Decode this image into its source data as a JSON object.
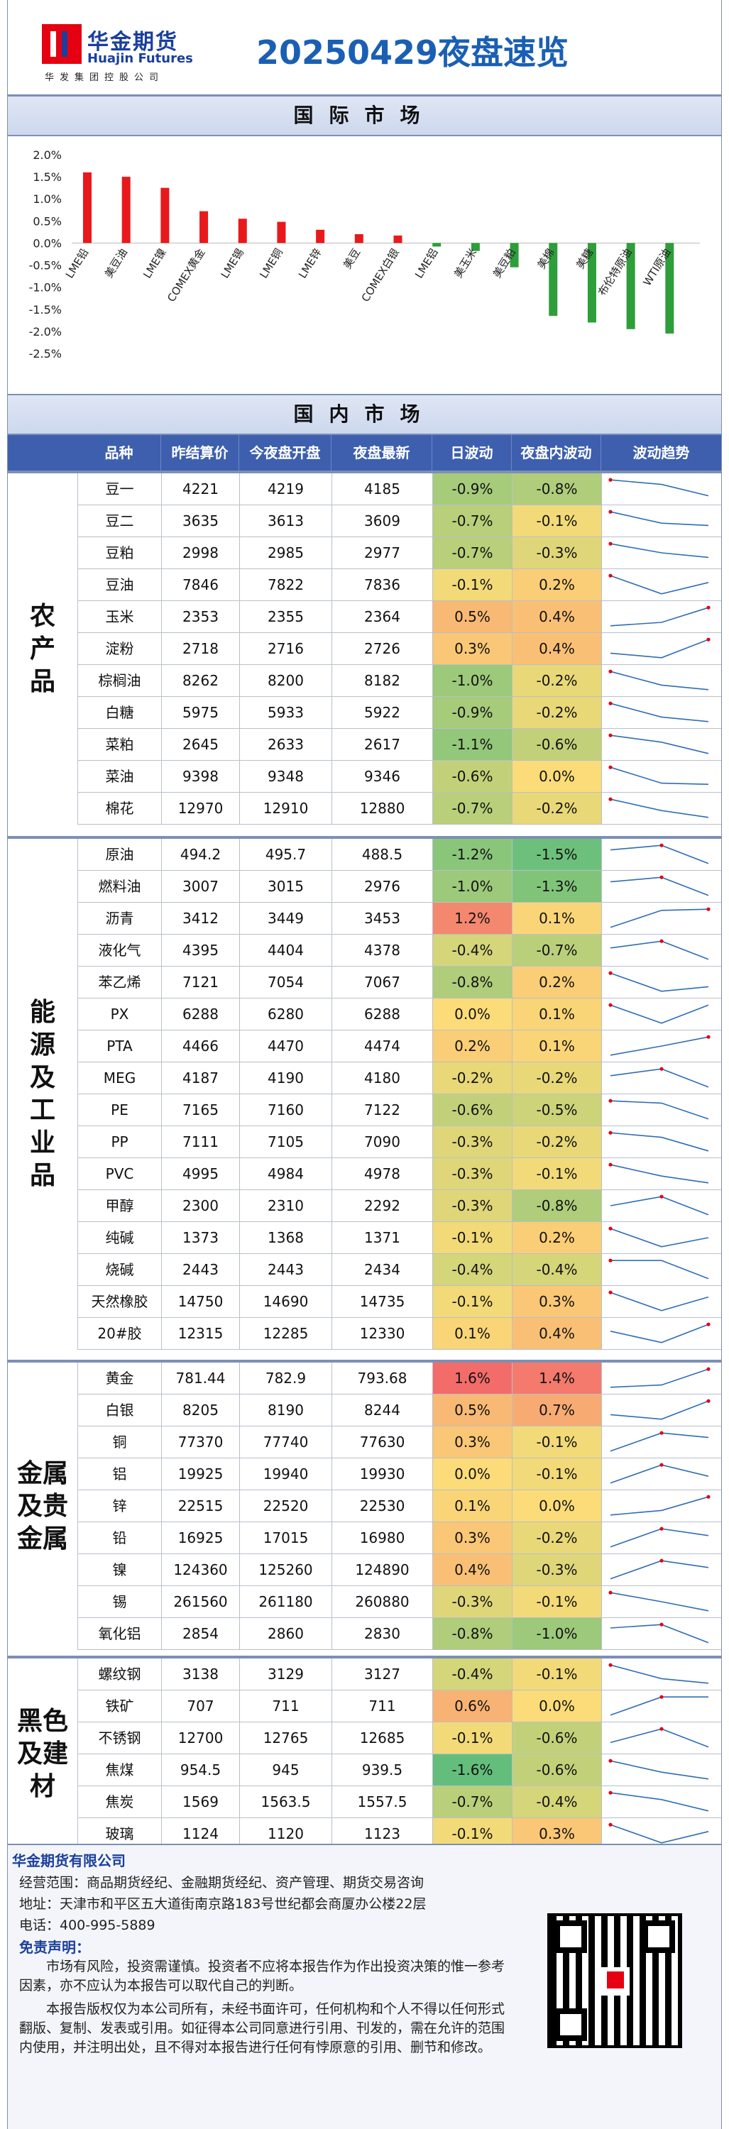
{
  "header": {
    "logo_cn": "华金期货",
    "logo_en": "Huajin Futures",
    "logo_sub": "华发集团控股公司",
    "title": "20250429夜盘速览"
  },
  "sections": {
    "international": "国际市场",
    "domestic": "国内市场"
  },
  "chart_data": {
    "type": "bar",
    "categories": [
      "LME铅",
      "美豆油",
      "LME镍",
      "COMEX黄金",
      "LME锡",
      "LME铜",
      "LME锌",
      "美豆",
      "COMEX白银",
      "LME铝",
      "美玉米",
      "美豆粕",
      "美棉",
      "美糖",
      "布伦特原油",
      "WTI原油"
    ],
    "values": [
      1.6,
      1.5,
      1.25,
      0.72,
      0.55,
      0.48,
      0.3,
      0.2,
      0.17,
      -0.08,
      -0.18,
      -0.55,
      -1.65,
      -1.8,
      -1.95,
      -2.05
    ],
    "yticks": [
      "2.0%",
      "1.5%",
      "1.0%",
      "0.5%",
      "0.0%",
      "-0.5%",
      "-1.0%",
      "-1.5%",
      "-2.0%",
      "-2.5%"
    ],
    "ylim": [
      -2.5,
      2.0
    ],
    "colors": {
      "positive": "#e8191c",
      "negative": "#2e9e3a"
    },
    "grid": false
  },
  "table": {
    "headers": [
      "品种",
      "昨结算价",
      "今夜盘开盘",
      "夜盘最新",
      "日波动",
      "夜盘内波动",
      "波动趋势"
    ],
    "groups": [
      {
        "label": "农\n产\n品",
        "rows": [
          {
            "name": "豆一",
            "prev": "4221",
            "open": "4219",
            "last": "4185",
            "day": "-0.9%",
            "night": "-0.8%",
            "d": -0.9,
            "n": -0.8,
            "trend": [
              0.9,
              0.7,
              0.2
            ]
          },
          {
            "name": "豆二",
            "prev": "3635",
            "open": "3613",
            "last": "3609",
            "day": "-0.7%",
            "night": "-0.1%",
            "d": -0.7,
            "n": -0.1,
            "trend": [
              0.9,
              0.4,
              0.3
            ]
          },
          {
            "name": "豆粕",
            "prev": "2998",
            "open": "2985",
            "last": "2977",
            "day": "-0.7%",
            "night": "-0.3%",
            "d": -0.7,
            "n": -0.3,
            "trend": [
              0.9,
              0.5,
              0.3
            ]
          },
          {
            "name": "豆油",
            "prev": "7846",
            "open": "7822",
            "last": "7836",
            "day": "-0.1%",
            "night": "0.2%",
            "d": -0.1,
            "n": 0.2,
            "trend": [
              0.9,
              0.1,
              0.6
            ]
          },
          {
            "name": "玉米",
            "prev": "2353",
            "open": "2355",
            "last": "2364",
            "day": "0.5%",
            "night": "0.4%",
            "d": 0.5,
            "n": 0.4,
            "trend": [
              0.1,
              0.25,
              0.9
            ]
          },
          {
            "name": "淀粉",
            "prev": "2718",
            "open": "2716",
            "last": "2726",
            "day": "0.3%",
            "night": "0.4%",
            "d": 0.3,
            "n": 0.4,
            "trend": [
              0.3,
              0.1,
              0.9
            ]
          },
          {
            "name": "棕榈油",
            "prev": "8262",
            "open": "8200",
            "last": "8182",
            "day": "-1.0%",
            "night": "-0.2%",
            "d": -1.0,
            "n": -0.2,
            "trend": [
              0.9,
              0.3,
              0.1
            ]
          },
          {
            "name": "白糖",
            "prev": "5975",
            "open": "5933",
            "last": "5922",
            "day": "-0.9%",
            "night": "-0.2%",
            "d": -0.9,
            "n": -0.2,
            "trend": [
              0.9,
              0.3,
              0.1
            ]
          },
          {
            "name": "菜粕",
            "prev": "2645",
            "open": "2633",
            "last": "2617",
            "day": "-1.1%",
            "night": "-0.6%",
            "d": -1.1,
            "n": -0.6,
            "trend": [
              0.9,
              0.6,
              0.1
            ]
          },
          {
            "name": "菜油",
            "prev": "9398",
            "open": "9348",
            "last": "9346",
            "day": "-0.6%",
            "night": "0.0%",
            "d": -0.6,
            "n": 0.0,
            "trend": [
              0.9,
              0.2,
              0.15
            ]
          },
          {
            "name": "棉花",
            "prev": "12970",
            "open": "12910",
            "last": "12880",
            "day": "-0.7%",
            "night": "-0.2%",
            "d": -0.7,
            "n": -0.2,
            "trend": [
              0.9,
              0.4,
              0.1
            ]
          }
        ]
      },
      {
        "label": "能\n源\n及\n工\n业\n品",
        "rows": [
          {
            "name": "原油",
            "prev": "494.2",
            "open": "495.7",
            "last": "488.5",
            "day": "-1.2%",
            "night": "-1.5%",
            "d": -1.2,
            "n": -1.5,
            "trend": [
              0.7,
              0.9,
              0.1
            ]
          },
          {
            "name": "燃料油",
            "prev": "3007",
            "open": "3015",
            "last": "2976",
            "day": "-1.0%",
            "night": "-1.3%",
            "d": -1.0,
            "n": -1.3,
            "trend": [
              0.7,
              0.9,
              0.1
            ]
          },
          {
            "name": "沥青",
            "prev": "3412",
            "open": "3449",
            "last": "3453",
            "day": "1.2%",
            "night": "0.1%",
            "d": 1.2,
            "n": 0.1,
            "trend": [
              0.1,
              0.85,
              0.9
            ]
          },
          {
            "name": "液化气",
            "prev": "4395",
            "open": "4404",
            "last": "4378",
            "day": "-0.4%",
            "night": "-0.7%",
            "d": -0.4,
            "n": -0.7,
            "trend": [
              0.6,
              0.9,
              0.1
            ]
          },
          {
            "name": "苯乙烯",
            "prev": "7121",
            "open": "7054",
            "last": "7067",
            "day": "-0.8%",
            "night": "0.2%",
            "d": -0.8,
            "n": 0.2,
            "trend": [
              0.9,
              0.1,
              0.3
            ]
          },
          {
            "name": "PX",
            "prev": "6288",
            "open": "6280",
            "last": "6288",
            "day": "0.0%",
            "night": "0.1%",
            "d": 0.0,
            "n": 0.1,
            "trend": [
              0.9,
              0.1,
              0.9
            ]
          },
          {
            "name": "PTA",
            "prev": "4466",
            "open": "4470",
            "last": "4474",
            "day": "0.2%",
            "night": "0.1%",
            "d": 0.2,
            "n": 0.1,
            "trend": [
              0.1,
              0.5,
              0.9
            ]
          },
          {
            "name": "MEG",
            "prev": "4187",
            "open": "4190",
            "last": "4180",
            "day": "-0.2%",
            "night": "-0.2%",
            "d": -0.2,
            "n": -0.2,
            "trend": [
              0.6,
              0.9,
              0.1
            ]
          },
          {
            "name": "PE",
            "prev": "7165",
            "open": "7160",
            "last": "7122",
            "day": "-0.6%",
            "night": "-0.5%",
            "d": -0.6,
            "n": -0.5,
            "trend": [
              0.9,
              0.8,
              0.1
            ]
          },
          {
            "name": "PP",
            "prev": "7111",
            "open": "7105",
            "last": "7090",
            "day": "-0.3%",
            "night": "-0.2%",
            "d": -0.3,
            "n": -0.2,
            "trend": [
              0.9,
              0.7,
              0.1
            ]
          },
          {
            "name": "PVC",
            "prev": "4995",
            "open": "4984",
            "last": "4978",
            "day": "-0.3%",
            "night": "-0.1%",
            "d": -0.3,
            "n": -0.1,
            "trend": [
              0.9,
              0.4,
              0.1
            ]
          },
          {
            "name": "甲醇",
            "prev": "2300",
            "open": "2310",
            "last": "2292",
            "day": "-0.3%",
            "night": "-0.8%",
            "d": -0.3,
            "n": -0.8,
            "trend": [
              0.5,
              0.9,
              0.1
            ]
          },
          {
            "name": "纯碱",
            "prev": "1373",
            "open": "1368",
            "last": "1371",
            "day": "-0.1%",
            "night": "0.2%",
            "d": -0.1,
            "n": 0.2,
            "trend": [
              0.9,
              0.1,
              0.5
            ]
          },
          {
            "name": "烧碱",
            "prev": "2443",
            "open": "2443",
            "last": "2434",
            "day": "-0.4%",
            "night": "-0.4%",
            "d": -0.4,
            "n": -0.4,
            "trend": [
              0.9,
              0.9,
              0.1
            ]
          },
          {
            "name": "天然橡胶",
            "prev": "14750",
            "open": "14690",
            "last": "14735",
            "day": "-0.1%",
            "night": "0.3%",
            "d": -0.1,
            "n": 0.3,
            "trend": [
              0.9,
              0.1,
              0.7
            ]
          },
          {
            "name": "20#胶",
            "prev": "12315",
            "open": "12285",
            "last": "12330",
            "day": "0.1%",
            "night": "0.4%",
            "d": 0.1,
            "n": 0.4,
            "trend": [
              0.6,
              0.1,
              0.9
            ]
          }
        ]
      },
      {
        "label": "金属\n及贵\n金属",
        "rows": [
          {
            "name": "黄金",
            "prev": "781.44",
            "open": "782.9",
            "last": "793.68",
            "day": "1.6%",
            "night": "1.4%",
            "d": 1.6,
            "n": 1.4,
            "trend": [
              0.1,
              0.2,
              0.9
            ]
          },
          {
            "name": "白银",
            "prev": "8205",
            "open": "8190",
            "last": "8244",
            "day": "0.5%",
            "night": "0.7%",
            "d": 0.5,
            "n": 0.7,
            "trend": [
              0.3,
              0.1,
              0.9
            ]
          },
          {
            "name": "铜",
            "prev": "77370",
            "open": "77740",
            "last": "77630",
            "day": "0.3%",
            "night": "-0.1%",
            "d": 0.3,
            "n": -0.1,
            "trend": [
              0.1,
              0.9,
              0.7
            ]
          },
          {
            "name": "铝",
            "prev": "19925",
            "open": "19940",
            "last": "19930",
            "day": "0.0%",
            "night": "-0.1%",
            "d": 0.0,
            "n": -0.1,
            "trend": [
              0.1,
              0.9,
              0.4
            ]
          },
          {
            "name": "锌",
            "prev": "22515",
            "open": "22520",
            "last": "22530",
            "day": "0.1%",
            "night": "0.0%",
            "d": 0.1,
            "n": 0.0,
            "trend": [
              0.1,
              0.3,
              0.9
            ]
          },
          {
            "name": "铅",
            "prev": "16925",
            "open": "17015",
            "last": "16980",
            "day": "0.3%",
            "night": "-0.2%",
            "d": 0.3,
            "n": -0.2,
            "trend": [
              0.1,
              0.9,
              0.6
            ]
          },
          {
            "name": "镍",
            "prev": "124360",
            "open": "125260",
            "last": "124890",
            "day": "0.4%",
            "night": "-0.3%",
            "d": 0.4,
            "n": -0.3,
            "trend": [
              0.1,
              0.9,
              0.6
            ]
          },
          {
            "name": "锡",
            "prev": "261560",
            "open": "261180",
            "last": "260880",
            "day": "-0.3%",
            "night": "-0.1%",
            "d": -0.3,
            "n": -0.1,
            "trend": [
              0.9,
              0.5,
              0.1
            ]
          },
          {
            "name": "氧化铝",
            "prev": "2854",
            "open": "2860",
            "last": "2830",
            "day": "-0.8%",
            "night": "-1.0%",
            "d": -0.8,
            "n": -1.0,
            "trend": [
              0.75,
              0.9,
              0.1
            ]
          }
        ]
      },
      {
        "label": "黑色\n及建\n材",
        "rows": [
          {
            "name": "螺纹钢",
            "prev": "3138",
            "open": "3129",
            "last": "3127",
            "day": "-0.4%",
            "night": "-0.1%",
            "d": -0.4,
            "n": -0.1,
            "trend": [
              0.9,
              0.3,
              0.1
            ]
          },
          {
            "name": "铁矿",
            "prev": "707",
            "open": "711",
            "last": "711",
            "day": "0.6%",
            "night": "0.0%",
            "d": 0.6,
            "n": 0.0,
            "trend": [
              0.1,
              0.9,
              0.9
            ]
          },
          {
            "name": "不锈钢",
            "prev": "12700",
            "open": "12765",
            "last": "12685",
            "day": "-0.1%",
            "night": "-0.6%",
            "d": -0.1,
            "n": -0.6,
            "trend": [
              0.3,
              0.9,
              0.1
            ]
          },
          {
            "name": "焦煤",
            "prev": "954.5",
            "open": "945",
            "last": "939.5",
            "day": "-1.6%",
            "night": "-0.6%",
            "d": -1.6,
            "n": -0.6,
            "trend": [
              0.9,
              0.4,
              0.1
            ]
          },
          {
            "name": "焦炭",
            "prev": "1569",
            "open": "1563.5",
            "last": "1557.5",
            "day": "-0.7%",
            "night": "-0.4%",
            "d": -0.7,
            "n": -0.4,
            "trend": [
              0.9,
              0.6,
              0.1
            ]
          },
          {
            "name": "玻璃",
            "prev": "1124",
            "open": "1120",
            "last": "1123",
            "day": "-0.1%",
            "night": "0.3%",
            "d": -0.1,
            "n": 0.3,
            "trend": [
              0.9,
              0.1,
              0.6
            ]
          }
        ]
      }
    ]
  },
  "footer": {
    "company": "华金期货有限公司",
    "scope": "经营范围：商品期货经纪、金融期货经纪、资产管理、期货交易咨询",
    "address": "地址：天津市和平区五大道街南京路183号世纪都会商厦办公楼22层",
    "phone": "电话：400-995-5889",
    "disclaimer_title": "免责声明：",
    "disclaimer_1": "市场有风险，投资需谨慎。投资者不应将本报告作为作出投资决策的惟一参考因素，亦不应认为本报告可以取代自己的判断。",
    "disclaimer_2": "本报告版权仅为本公司所有，未经书面许可，任何机构和个人不得以任何形式翻版、复制、发表或引用。如征得本公司同意进行引用、刊发的，需在允许的范围内使用，并注明出处，且不得对本报告进行任何有悖原意的引用、删节和修改。"
  }
}
